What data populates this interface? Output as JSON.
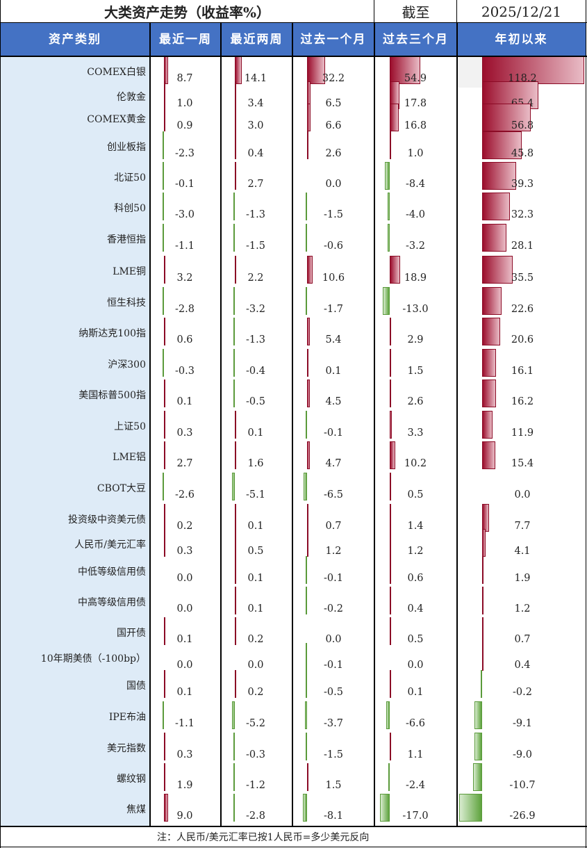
{
  "header": {
    "title": "大类资产走势（收益率%）",
    "as_of_label": "截至",
    "as_of_date": "2025/12/21"
  },
  "columns": [
    "资产类别",
    "最近一周",
    "最近两周",
    "过去一个月",
    "过去三个月",
    "年初以来"
  ],
  "colors": {
    "header_bg": "#4472c4",
    "name_col_bg": "#deebf7",
    "positive_bar": "#9b0d2c",
    "negative_bar": "#5ea33d"
  },
  "rows": [
    {
      "name": "COMEX白银",
      "values": [
        8.7,
        14.1,
        32.2,
        54.9,
        118.2
      ]
    },
    {
      "name": "伦敦金",
      "values": [
        1.0,
        3.4,
        6.5,
        17.8,
        65.4
      ]
    },
    {
      "name": "COMEX黄金",
      "values": [
        0.9,
        3.0,
        6.6,
        16.8,
        56.8
      ]
    },
    {
      "name": "创业板指",
      "values": [
        -2.3,
        0.4,
        2.6,
        1.0,
        45.8
      ]
    },
    {
      "name": "北证50",
      "values": [
        -0.1,
        2.7,
        0.0,
        -8.4,
        39.3
      ]
    },
    {
      "name": "科创50",
      "values": [
        -3.0,
        -1.3,
        -1.5,
        -4.0,
        32.3
      ]
    },
    {
      "name": "香港恒指",
      "values": [
        -1.1,
        -1.5,
        -0.6,
        -3.2,
        28.1
      ]
    },
    {
      "name": "LME铜",
      "values": [
        3.2,
        2.2,
        10.6,
        18.9,
        35.5
      ]
    },
    {
      "name": "恒生科技",
      "values": [
        -2.8,
        -3.2,
        -1.7,
        -13.0,
        22.6
      ]
    },
    {
      "name": "纳斯达克100指",
      "values": [
        0.6,
        -1.3,
        5.4,
        2.9,
        20.6
      ]
    },
    {
      "name": "沪深300",
      "values": [
        -0.3,
        -0.4,
        0.1,
        1.5,
        16.1
      ]
    },
    {
      "name": "美国标普500指",
      "values": [
        0.1,
        -0.5,
        4.5,
        2.6,
        16.2
      ]
    },
    {
      "name": "上证50",
      "values": [
        0.3,
        0.1,
        -0.1,
        3.3,
        11.9
      ]
    },
    {
      "name": "LME铝",
      "values": [
        2.7,
        1.6,
        4.7,
        10.2,
        15.4
      ]
    },
    {
      "name": "CBOT大豆",
      "values": [
        -2.6,
        -5.1,
        -6.5,
        0.5,
        0.0
      ]
    },
    {
      "name": "投资级中资美元债",
      "values": [
        0.2,
        0.1,
        0.7,
        1.4,
        7.7
      ]
    },
    {
      "name": "人民币/美元汇率",
      "values": [
        0.3,
        0.5,
        1.2,
        1.2,
        4.1
      ]
    },
    {
      "name": "中低等级信用债",
      "values": [
        0.0,
        0.1,
        -0.1,
        0.6,
        1.9
      ]
    },
    {
      "name": "中高等级信用债",
      "values": [
        0.0,
        0.1,
        -0.2,
        0.4,
        1.2
      ]
    },
    {
      "name": "国开债",
      "values": [
        0.1,
        0.2,
        0.0,
        0.5,
        0.7
      ]
    },
    {
      "name": "10年期美债（-100bp）",
      "values": [
        0.0,
        0.0,
        -0.1,
        0.0,
        0.4
      ]
    },
    {
      "name": "国债",
      "values": [
        0.1,
        0.2,
        -0.5,
        0.1,
        -0.2
      ]
    },
    {
      "name": "IPE布油",
      "values": [
        -1.1,
        -5.2,
        -3.7,
        -6.6,
        -9.1
      ]
    },
    {
      "name": "美元指数",
      "values": [
        0.3,
        -0.3,
        -1.5,
        1.1,
        -9.0
      ]
    },
    {
      "name": "螺纹钢",
      "values": [
        1.9,
        -1.2,
        1.5,
        -2.4,
        -10.7
      ]
    },
    {
      "name": "焦煤",
      "values": [
        9.0,
        -2.8,
        -8.1,
        -17.0,
        -26.9
      ]
    }
  ],
  "footnote": "注：人民币/美元汇率已按1人民币=多少美元反向"
}
